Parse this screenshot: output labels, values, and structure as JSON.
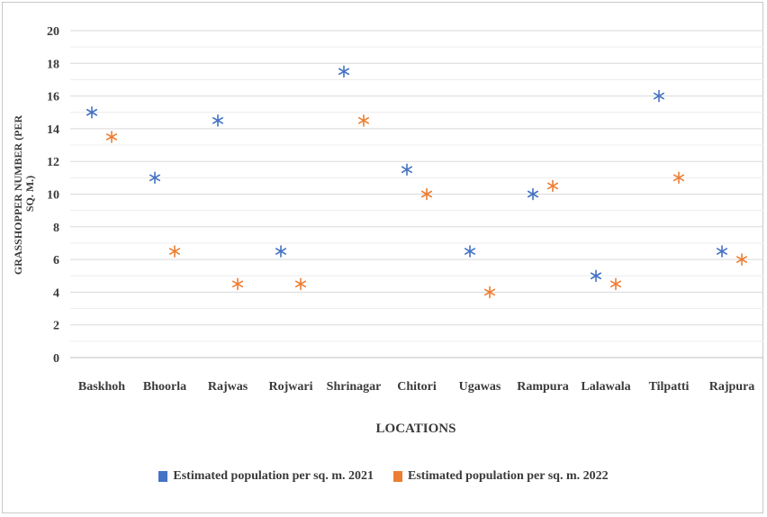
{
  "chart_data": {
    "type": "scatter",
    "title": "",
    "xlabel": "LOCATIONS",
    "ylabel": "GRASSHOPPER NUMBER (PER SQ. M.)",
    "ylabel_lines": [
      "GRASSHOPPER NUMBER (PER",
      "SQ. M.)"
    ],
    "ylim": [
      0,
      20
    ],
    "yticks": [
      0,
      2,
      4,
      6,
      8,
      10,
      12,
      14,
      16,
      18,
      20
    ],
    "grid": true,
    "legend_position": "bottom",
    "marker": "asterisk",
    "categories": [
      "Baskhoh",
      "Bhoorla",
      "Rajwas",
      "Rojwari",
      "Shrinagar",
      "Chitori",
      "Ugawas",
      "Rampura",
      "Lalawala",
      "Tilpatti",
      "Rajpura"
    ],
    "series": [
      {
        "name": "Estimated population per sq. m. 2021",
        "color": "#4472c4",
        "values": [
          15,
          11,
          14.5,
          6.5,
          17.5,
          11.5,
          6.5,
          10,
          5,
          16,
          6.5
        ]
      },
      {
        "name": "Estimated population per sq. m. 2022",
        "color": "#ed7d31",
        "values": [
          13.5,
          6.5,
          4.5,
          4.5,
          14.5,
          10,
          4,
          10.5,
          4.5,
          11,
          6
        ]
      }
    ]
  }
}
